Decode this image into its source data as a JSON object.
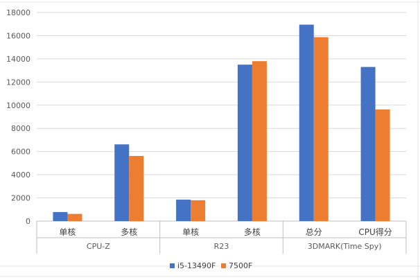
{
  "chart_data": {
    "type": "bar",
    "title": "",
    "xlabel": "",
    "ylabel": "",
    "ylim": [
      0,
      18000
    ],
    "yticks": [
      0,
      2000,
      4000,
      6000,
      8000,
      10000,
      12000,
      14000,
      16000,
      18000
    ],
    "grid": "horizontal",
    "legend_position": "bottom",
    "groups": [
      {
        "label": "CPU-Z",
        "categories": [
          "单核",
          "多核"
        ]
      },
      {
        "label": "R23",
        "categories": [
          "单核",
          "多核"
        ]
      },
      {
        "label": "3DMARK(Time Spy)",
        "categories": [
          "总分",
          "CPU得分"
        ]
      }
    ],
    "categories": [
      "单核",
      "多核",
      "单核",
      "多核",
      "总分",
      "CPU得分"
    ],
    "series": [
      {
        "name": "i5-13490F",
        "color": "#4472c4",
        "values": [
          780,
          6620,
          1850,
          13500,
          16950,
          13300
        ]
      },
      {
        "name": "7500F",
        "color": "#ed7d31",
        "values": [
          620,
          5620,
          1800,
          13800,
          15870,
          9630
        ]
      }
    ]
  }
}
